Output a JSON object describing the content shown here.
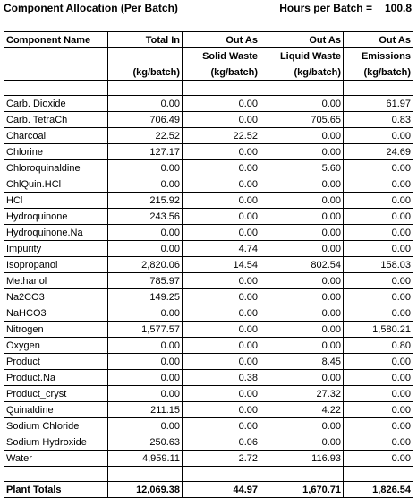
{
  "title": "Component Allocation (Per Batch)",
  "hours_label": "Hours per Batch =",
  "hours_value": "100.8",
  "headers": {
    "row1": [
      "Component Name",
      "Total In",
      "Out As",
      "Out As",
      "Out As"
    ],
    "row2": [
      "",
      "",
      "Solid Waste",
      "Liquid Waste",
      "Emissions"
    ],
    "row3": [
      "",
      "(kg/batch)",
      "(kg/batch)",
      "(kg/batch)",
      "(kg/batch)"
    ]
  },
  "rows": [
    [
      "Carb. Dioxide",
      "0.00",
      "0.00",
      "0.00",
      "61.97"
    ],
    [
      "Carb. TetraCh",
      "706.49",
      "0.00",
      "705.65",
      "0.83"
    ],
    [
      "Charcoal",
      "22.52",
      "22.52",
      "0.00",
      "0.00"
    ],
    [
      "Chlorine",
      "127.17",
      "0.00",
      "0.00",
      "24.69"
    ],
    [
      "Chloroquinaldine",
      "0.00",
      "0.00",
      "5.60",
      "0.00"
    ],
    [
      "ChlQuin.HCl",
      "0.00",
      "0.00",
      "0.00",
      "0.00"
    ],
    [
      "HCl",
      "215.92",
      "0.00",
      "0.00",
      "0.00"
    ],
    [
      "Hydroquinone",
      "243.56",
      "0.00",
      "0.00",
      "0.00"
    ],
    [
      "Hydroquinone.Na",
      "0.00",
      "0.00",
      "0.00",
      "0.00"
    ],
    [
      "Impurity",
      "0.00",
      "4.74",
      "0.00",
      "0.00"
    ],
    [
      "Isopropanol",
      "2,820.06",
      "14.54",
      "802.54",
      "158.03"
    ],
    [
      "Methanol",
      "785.97",
      "0.00",
      "0.00",
      "0.00"
    ],
    [
      "Na2CO3",
      "149.25",
      "0.00",
      "0.00",
      "0.00"
    ],
    [
      "NaHCO3",
      "0.00",
      "0.00",
      "0.00",
      "0.00"
    ],
    [
      "Nitrogen",
      "1,577.57",
      "0.00",
      "0.00",
      "1,580.21"
    ],
    [
      "Oxygen",
      "0.00",
      "0.00",
      "0.00",
      "0.80"
    ],
    [
      "Product",
      "0.00",
      "0.00",
      "8.45",
      "0.00"
    ],
    [
      "Product.Na",
      "0.00",
      "0.38",
      "0.00",
      "0.00"
    ],
    [
      "Product_cryst",
      "0.00",
      "0.00",
      "27.32",
      "0.00"
    ],
    [
      "Quinaldine",
      "211.15",
      "0.00",
      "4.22",
      "0.00"
    ],
    [
      "Sodium Chloride",
      "0.00",
      "0.00",
      "0.00",
      "0.00"
    ],
    [
      "Sodium Hydroxide",
      "250.63",
      "0.06",
      "0.00",
      "0.00"
    ],
    [
      "Water",
      "4,959.11",
      "2.72",
      "116.93",
      "0.00"
    ]
  ],
  "totals": [
    "Plant Totals",
    "12,069.38",
    "44.97",
    "1,670.71",
    "1,826.54"
  ]
}
